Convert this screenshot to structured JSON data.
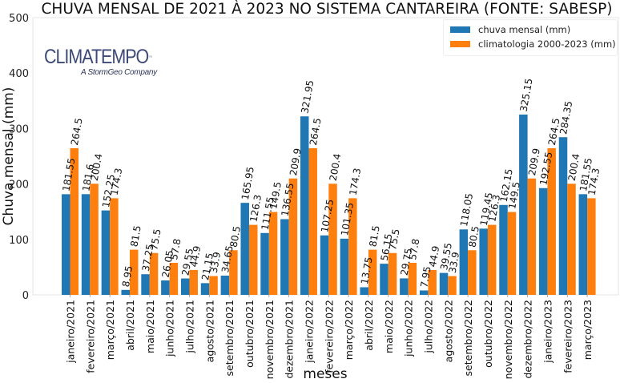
{
  "chart_data": {
    "type": "bar",
    "title": "CHUVA MENSAL DE 2021 À 2023 NO SISTEMA CANTAREIRA (FONTE: SABESP)",
    "xlabel": "meses",
    "ylabel": "Chuva mensal (mm)",
    "ylim": [
      0,
      500
    ],
    "yticks": [
      0,
      100,
      200,
      300,
      400,
      500
    ],
    "grid": false,
    "legend_position": "top-right",
    "categories": [
      "janeiro/2021",
      "fevereiro/2021",
      "março/2021",
      "abril/2021",
      "maio/2021",
      "junho/2021",
      "julho/2021",
      "agosto/2021",
      "setembro/2021",
      "outubro/2021",
      "novembro/2021",
      "dezembro/2021",
      "janeiro/2022",
      "fevereiro/2022",
      "março/2022",
      "abril/2022",
      "maio/2022",
      "junho/2022",
      "julho/2022",
      "agosto/2022",
      "setembro/2022",
      "outubro/2022",
      "novembro/2022",
      "dezembro/2022",
      "janeiro/2023",
      "fevereiro/2023",
      "março/2023"
    ],
    "series": [
      {
        "name": "chuva mensal (mm)",
        "color": "#1f77b4",
        "values": [
          181.55,
          181.6,
          152.25,
          8.95,
          37.25,
          26.05,
          29.55,
          21.15,
          34.65,
          165.95,
          111.55,
          136.55,
          321.95,
          107.25,
          101.35,
          13.75,
          56.15,
          29.75,
          7.95,
          39.55,
          118.05,
          119.45,
          162.15,
          325.15,
          192.55,
          284.35,
          181.55
        ]
      },
      {
        "name": "climatologia 2000-2023 (mm)",
        "color": "#ff7f0e",
        "values": [
          264.5,
          200.4,
          174.3,
          81.5,
          75.5,
          57.8,
          44.9,
          33.9,
          80.5,
          126.3,
          149.5,
          209.9,
          264.5,
          200.4,
          174.3,
          81.5,
          75.5,
          57.8,
          44.9,
          33.9,
          80.5,
          126.3,
          149.5,
          209.9,
          264.5,
          200.4,
          174.3
        ]
      }
    ]
  },
  "logo": {
    "name": "CLIMATEMPO",
    "tm": "™",
    "tagline": "A StormGeo Company"
  }
}
